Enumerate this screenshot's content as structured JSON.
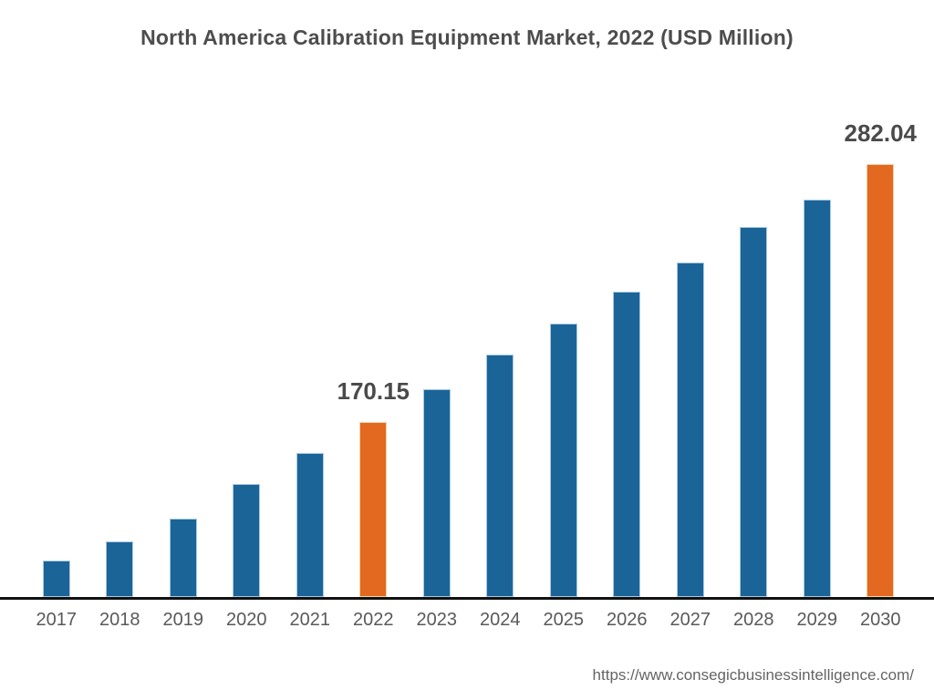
{
  "title": "North America Calibration Equipment Market, 2022 (USD Million)",
  "footer": {
    "url": "https://www.consegicbusinessintelligence.com/"
  },
  "chart_data": {
    "type": "bar",
    "title": "North America Calibration Equipment Market, 2022 (USD Million)",
    "categories": [
      "2017",
      "2018",
      "2019",
      "2020",
      "2021",
      "2022",
      "2023",
      "2024",
      "2025",
      "2026",
      "2027",
      "2028",
      "2029",
      "2030"
    ],
    "values": [
      110.1,
      118.4,
      128.2,
      143.3,
      156.7,
      170.15,
      184.4,
      199.4,
      212.9,
      226.7,
      239.5,
      254.6,
      266.6,
      282.04
    ],
    "data_labels": {
      "2022": "170.15",
      "2030": "282.04"
    },
    "highlight_categories": [
      "2022",
      "2030"
    ],
    "xlabel": "",
    "ylabel": "",
    "ylim": [
      94.24,
      297.86
    ],
    "grid": false,
    "legend": false,
    "value_axis_visible": false,
    "colors": {
      "bar_default": "#1b6498",
      "bar_default_edge": "#a9cae4",
      "bar_highlight": "#e2691f",
      "bar_highlight_edge": "#f2d3ad",
      "axis_line": "#111111",
      "title_text": "#4d4d4d",
      "tick_text": "#595959",
      "data_label_text": "#4a4a4a",
      "footer_text": "#646464"
    }
  }
}
